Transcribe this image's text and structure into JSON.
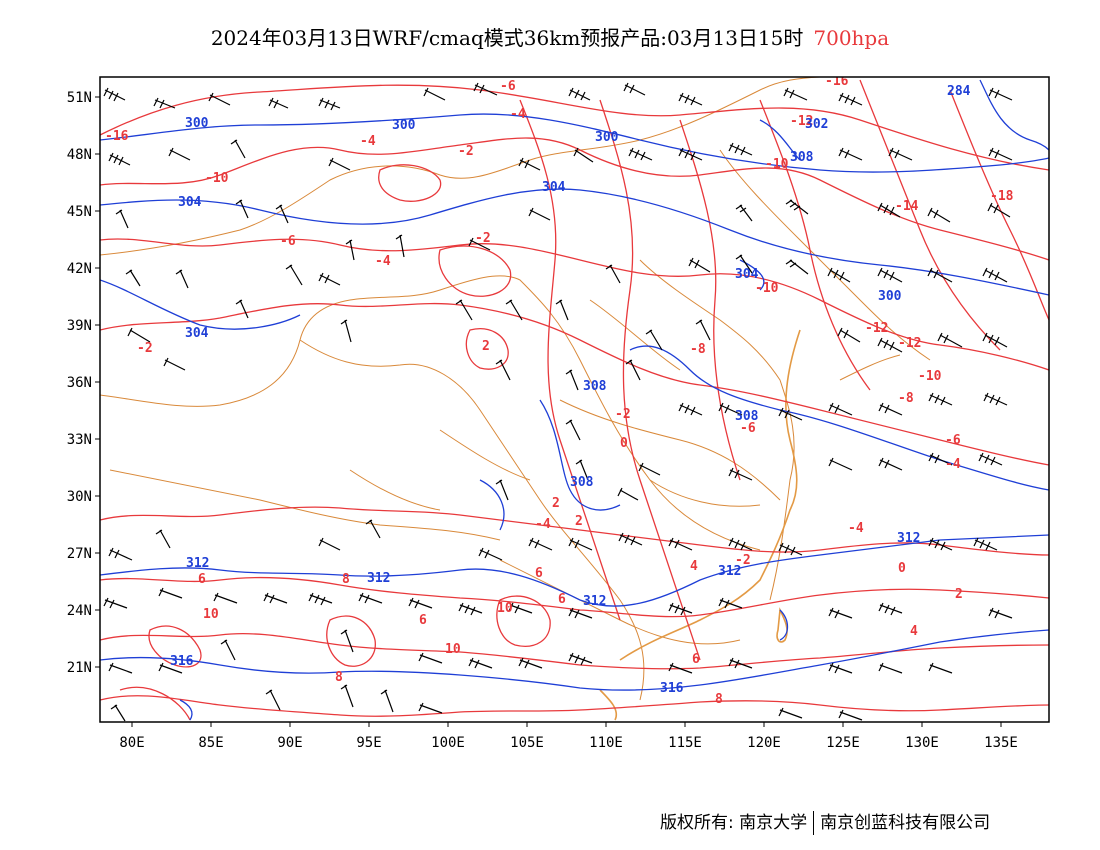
{
  "title": {
    "main": "2024年03月13日WRF/cmaq模式36km预报产品:03月13日15时",
    "level": "700hpa"
  },
  "axes": {
    "lon_labels": [
      "80E",
      "85E",
      "90E",
      "95E",
      "100E",
      "105E",
      "110E",
      "115E",
      "120E",
      "125E",
      "130E",
      "135E"
    ],
    "lat_labels": [
      "51N",
      "48N",
      "45N",
      "42N",
      "39N",
      "36N",
      "33N",
      "30N",
      "27N",
      "24N",
      "21N"
    ]
  },
  "colors": {
    "temperature": "#e8393c",
    "height": "#1f3fd6",
    "border": "#d9893a",
    "wind": "#000000"
  },
  "temperature_labels": [
    "-16",
    "-10",
    "-6",
    "-4",
    "-2",
    "-4",
    "-2",
    "2",
    "-6",
    "-4",
    "-12",
    "-10",
    "-16",
    "-14",
    "-18",
    "-12",
    "-10",
    "-8",
    "-2",
    "0",
    "2",
    "-4",
    "6",
    "6",
    "10",
    "8",
    "10",
    "6",
    "4",
    "-2",
    "2",
    "0",
    "-4",
    "-6",
    "-8",
    "-10",
    "-12",
    "-4",
    "-6",
    "8",
    "10",
    "6",
    "-2",
    "2",
    "4",
    "6",
    "8"
  ],
  "height_labels": [
    "300",
    "300",
    "300",
    "304",
    "304",
    "304",
    "302",
    "308",
    "304",
    "300",
    "308",
    "308",
    "308",
    "312",
    "312",
    "312",
    "312",
    "316",
    "316",
    "284",
    "312"
  ],
  "footer": {
    "left": "版权所有: 南京大学",
    "right": "南京创蓝科技有限公司"
  }
}
